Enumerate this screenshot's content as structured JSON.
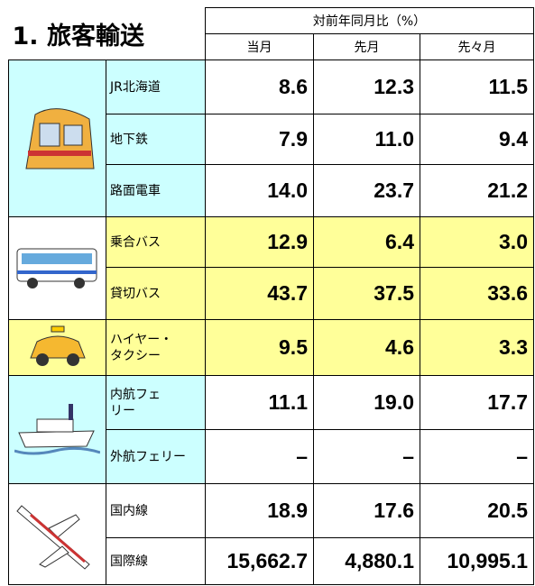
{
  "header": {
    "title": "1. 旅客輸送"
  },
  "table": {
    "header_group": "対前年同月比（%）",
    "columns": [
      "当月",
      "先月",
      "先々月"
    ],
    "groups": [
      {
        "rows": [
          {
            "label": "JR北海道",
            "values": [
              "8.6",
              "12.3",
              "11.5"
            ]
          },
          {
            "label": "地下鉄",
            "values": [
              "7.9",
              "11.0",
              "9.4"
            ]
          },
          {
            "label": "路面電車",
            "values": [
              "14.0",
              "23.7",
              "21.2"
            ]
          }
        ]
      },
      {
        "rows": [
          {
            "label": "乗合バス",
            "values": [
              "12.9",
              "6.4",
              "3.0"
            ]
          },
          {
            "label": "貸切バス",
            "values": [
              "43.7",
              "37.5",
              "33.6"
            ]
          }
        ]
      },
      {
        "rows": [
          {
            "label": "ハイヤー・\nタクシー",
            "values": [
              "9.5",
              "4.6",
              "3.3"
            ]
          }
        ]
      },
      {
        "rows": [
          {
            "label": "内航フェ\nリー",
            "values": [
              "11.1",
              "19.0",
              "17.7"
            ]
          },
          {
            "label": "外航フェリー",
            "values": [
              "–",
              "–",
              "–"
            ]
          }
        ]
      },
      {
        "rows": [
          {
            "label": "国内線",
            "values": [
              "18.9",
              "17.6",
              "20.5"
            ]
          },
          {
            "label": "国際線",
            "values": [
              "15,662.7",
              "4,880.1",
              "10,995.1"
            ]
          }
        ]
      }
    ]
  }
}
